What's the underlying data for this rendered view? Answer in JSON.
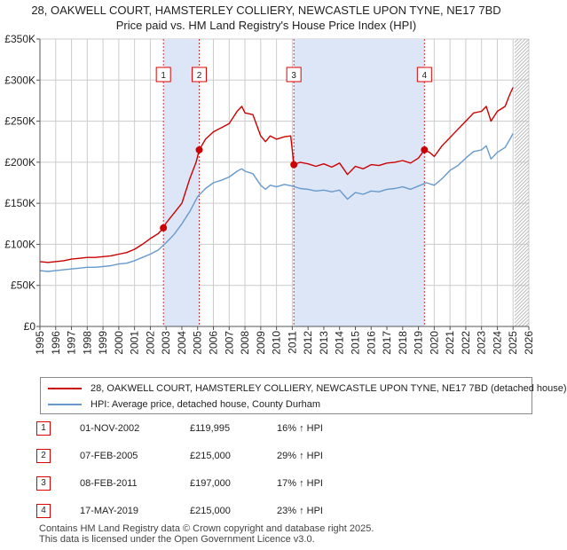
{
  "title": {
    "line1": "28, OAKWELL COURT, HAMSTERLEY COLLIERY, NEWCASTLE UPON TYNE, NE17 7BD",
    "line2": "Price paid vs. HM Land Registry's House Price Index (HPI)"
  },
  "colors": {
    "property": "#cc0000",
    "hpi": "#6699cc",
    "shade": "#dde6f7",
    "grid": "#cccccc",
    "marker_box": "#dd0000"
  },
  "chart_data": {
    "type": "line",
    "title": "Price paid vs. HM Land Registry's House Price Index (HPI)",
    "xlim": [
      1995,
      2026
    ],
    "ylim": [
      0,
      350000
    ],
    "x_ticks": [
      "1995",
      "1996",
      "1997",
      "1998",
      "1999",
      "2000",
      "2001",
      "2002",
      "2003",
      "2004",
      "2005",
      "2006",
      "2007",
      "2008",
      "2009",
      "2010",
      "2011",
      "2012",
      "2013",
      "2014",
      "2015",
      "2016",
      "2017",
      "2018",
      "2019",
      "2020",
      "2021",
      "2022",
      "2023",
      "2024",
      "2025",
      "2026"
    ],
    "y_ticks": [
      {
        "value": 0,
        "label": "£0"
      },
      {
        "value": 50000,
        "label": "£50K"
      },
      {
        "value": 100000,
        "label": "£100K"
      },
      {
        "value": 150000,
        "label": "£150K"
      },
      {
        "value": 200000,
        "label": "£200K"
      },
      {
        "value": 250000,
        "label": "£250K"
      },
      {
        "value": 300000,
        "label": "£300K"
      },
      {
        "value": 350000,
        "label": "£350K"
      }
    ],
    "shaded_ranges": [
      [
        2002.83,
        2005.1
      ],
      [
        2011.1,
        2019.38
      ]
    ],
    "future_hatch_from": 2025.1,
    "series": [
      {
        "name": "28, OAKWELL COURT, HAMSTERLEY COLLIERY, NEWCASTLE UPON TYNE, NE17 7BD (detached house)",
        "color": "#cc0000",
        "points": [
          [
            1995.0,
            79000
          ],
          [
            1995.5,
            78000
          ],
          [
            1996.0,
            79000
          ],
          [
            1996.5,
            80000
          ],
          [
            1997.0,
            82000
          ],
          [
            1997.5,
            83000
          ],
          [
            1998.0,
            84000
          ],
          [
            1998.5,
            84000
          ],
          [
            1999.0,
            85000
          ],
          [
            1999.5,
            86000
          ],
          [
            2000.0,
            88000
          ],
          [
            2000.5,
            90000
          ],
          [
            2001.0,
            94000
          ],
          [
            2001.5,
            100000
          ],
          [
            2002.0,
            107000
          ],
          [
            2002.5,
            113000
          ],
          [
            2002.83,
            119995
          ],
          [
            2003.0,
            126000
          ],
          [
            2003.5,
            138000
          ],
          [
            2004.0,
            150000
          ],
          [
            2004.5,
            180000
          ],
          [
            2004.9,
            200000
          ],
          [
            2005.1,
            215000
          ],
          [
            2005.5,
            228000
          ],
          [
            2006.0,
            237000
          ],
          [
            2006.5,
            242000
          ],
          [
            2007.0,
            247000
          ],
          [
            2007.5,
            262000
          ],
          [
            2007.8,
            268000
          ],
          [
            2008.0,
            260000
          ],
          [
            2008.5,
            258000
          ],
          [
            2009.0,
            232000
          ],
          [
            2009.3,
            225000
          ],
          [
            2009.6,
            232000
          ],
          [
            2010.0,
            228000
          ],
          [
            2010.5,
            231000
          ],
          [
            2010.9,
            232000
          ],
          [
            2011.1,
            197000
          ],
          [
            2011.5,
            200000
          ],
          [
            2012.0,
            198000
          ],
          [
            2012.5,
            195000
          ],
          [
            2013.0,
            198000
          ],
          [
            2013.5,
            194000
          ],
          [
            2014.0,
            199000
          ],
          [
            2014.5,
            185000
          ],
          [
            2015.0,
            195000
          ],
          [
            2015.5,
            192000
          ],
          [
            2016.0,
            197000
          ],
          [
            2016.5,
            196000
          ],
          [
            2017.0,
            199000
          ],
          [
            2017.5,
            200000
          ],
          [
            2018.0,
            202000
          ],
          [
            2018.5,
            199000
          ],
          [
            2019.0,
            205000
          ],
          [
            2019.38,
            215000
          ],
          [
            2019.7,
            212000
          ],
          [
            2020.0,
            207000
          ],
          [
            2020.5,
            220000
          ],
          [
            2021.0,
            230000
          ],
          [
            2021.5,
            240000
          ],
          [
            2022.0,
            250000
          ],
          [
            2022.5,
            260000
          ],
          [
            2023.0,
            262000
          ],
          [
            2023.3,
            268000
          ],
          [
            2023.6,
            250000
          ],
          [
            2024.0,
            262000
          ],
          [
            2024.5,
            268000
          ],
          [
            2024.8,
            283000
          ],
          [
            2025.0,
            291000
          ]
        ]
      },
      {
        "name": "HPI: Average price, detached house, County Durham",
        "color": "#6699cc",
        "points": [
          [
            1995.0,
            68000
          ],
          [
            1995.5,
            67000
          ],
          [
            1996.0,
            68000
          ],
          [
            1996.5,
            69000
          ],
          [
            1997.0,
            70000
          ],
          [
            1997.5,
            71000
          ],
          [
            1998.0,
            72000
          ],
          [
            1998.5,
            72000
          ],
          [
            1999.0,
            73000
          ],
          [
            1999.5,
            74000
          ],
          [
            2000.0,
            76000
          ],
          [
            2000.5,
            77000
          ],
          [
            2001.0,
            80000
          ],
          [
            2001.5,
            84000
          ],
          [
            2002.0,
            88000
          ],
          [
            2002.5,
            93000
          ],
          [
            2003.0,
            102000
          ],
          [
            2003.5,
            112000
          ],
          [
            2004.0,
            125000
          ],
          [
            2004.5,
            140000
          ],
          [
            2005.0,
            158000
          ],
          [
            2005.5,
            168000
          ],
          [
            2006.0,
            175000
          ],
          [
            2006.5,
            178000
          ],
          [
            2007.0,
            182000
          ],
          [
            2007.5,
            189000
          ],
          [
            2007.8,
            192000
          ],
          [
            2008.0,
            189000
          ],
          [
            2008.5,
            186000
          ],
          [
            2009.0,
            172000
          ],
          [
            2009.3,
            167000
          ],
          [
            2009.6,
            172000
          ],
          [
            2010.0,
            170000
          ],
          [
            2010.5,
            173000
          ],
          [
            2011.0,
            171000
          ],
          [
            2011.5,
            168000
          ],
          [
            2012.0,
            167000
          ],
          [
            2012.5,
            165000
          ],
          [
            2013.0,
            166000
          ],
          [
            2013.5,
            164000
          ],
          [
            2014.0,
            166000
          ],
          [
            2014.5,
            155000
          ],
          [
            2015.0,
            163000
          ],
          [
            2015.5,
            161000
          ],
          [
            2016.0,
            165000
          ],
          [
            2016.5,
            164000
          ],
          [
            2017.0,
            167000
          ],
          [
            2017.5,
            168000
          ],
          [
            2018.0,
            170000
          ],
          [
            2018.5,
            167000
          ],
          [
            2019.0,
            171000
          ],
          [
            2019.5,
            175000
          ],
          [
            2020.0,
            172000
          ],
          [
            2020.5,
            180000
          ],
          [
            2021.0,
            190000
          ],
          [
            2021.5,
            196000
          ],
          [
            2022.0,
            205000
          ],
          [
            2022.5,
            213000
          ],
          [
            2023.0,
            215000
          ],
          [
            2023.3,
            220000
          ],
          [
            2023.6,
            204000
          ],
          [
            2024.0,
            212000
          ],
          [
            2024.5,
            218000
          ],
          [
            2024.8,
            228000
          ],
          [
            2025.0,
            235000
          ]
        ]
      }
    ],
    "markers": [
      {
        "label": "1",
        "date": 2002.83,
        "price": 119995
      },
      {
        "label": "2",
        "date": 2005.1,
        "price": 215000
      },
      {
        "label": "3",
        "date": 2011.1,
        "price": 197000
      },
      {
        "label": "4",
        "date": 2019.38,
        "price": 215000
      }
    ]
  },
  "legend": {
    "property_label": "28, OAKWELL COURT, HAMSTERLEY COLLIERY, NEWCASTLE UPON TYNE, NE17 7BD (detached house)",
    "hpi_label": "HPI: Average price, detached house, County Durham"
  },
  "sales": [
    {
      "num": "1",
      "date": "01-NOV-2002",
      "price": "£119,995",
      "hpi": "16% ↑ HPI"
    },
    {
      "num": "2",
      "date": "07-FEB-2005",
      "price": "£215,000",
      "hpi": "29% ↑ HPI"
    },
    {
      "num": "3",
      "date": "08-FEB-2011",
      "price": "£197,000",
      "hpi": "17% ↑ HPI"
    },
    {
      "num": "4",
      "date": "17-MAY-2019",
      "price": "£215,000",
      "hpi": "23% ↑ HPI"
    }
  ],
  "footer": {
    "line1": "Contains HM Land Registry data © Crown copyright and database right 2025.",
    "line2": "This data is licensed under the Open Government Licence v3.0."
  }
}
